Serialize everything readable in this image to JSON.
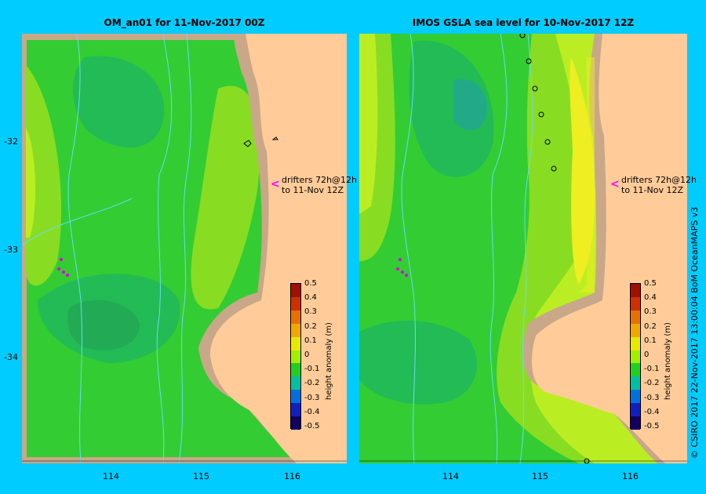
{
  "titles": {
    "left": "OM_an01  for 11-Nov-2017 00Z",
    "right": "IMOS  GSLA sea level  for 10-Nov-2017 12Z"
  },
  "axes": {
    "lat_labels": [
      "-32",
      "-33",
      "-34"
    ],
    "lon_labels": [
      "114",
      "115",
      "116"
    ]
  },
  "drifters": {
    "line1": "drifters 72h@12h",
    "line2": "to 11-Nov 12Z",
    "arrow": "<"
  },
  "colorbar": {
    "title": "height anomaly (m)",
    "ticks": [
      "0.5",
      "0.4",
      "0.3",
      "0.2",
      "0.1",
      "0",
      "-0.1",
      "-0.2",
      "-0.3",
      "-0.4",
      "-0.5"
    ],
    "colors": [
      "#a01000",
      "#d03000",
      "#e87000",
      "#f0a800",
      "#e8e800",
      "#a0f000",
      "#20d020",
      "#00c0a0",
      "#0070e0",
      "#1020c0",
      "#100060"
    ]
  },
  "credit": "© CSIRO 2017   22-Nov-2017 13:00:04 BoM OceanMAPS v3",
  "colors": {
    "background": "#00ccff",
    "land": "#ffcc99",
    "shelf": "#c8a888"
  }
}
